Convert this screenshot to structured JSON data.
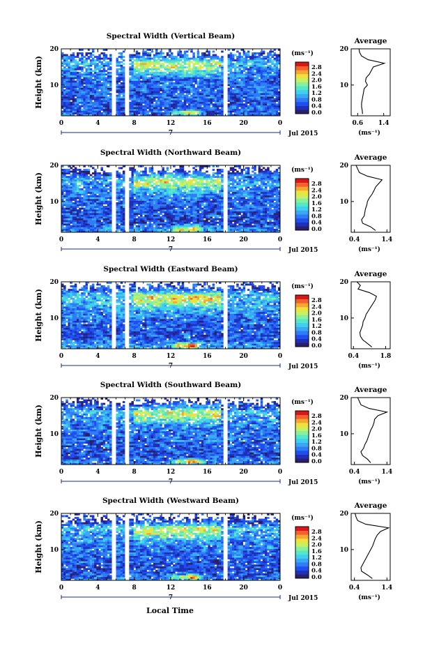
{
  "figure": {
    "xlabel": "Local Time",
    "month_label": "Jul 2015",
    "day_marker": "7",
    "ylabel": "Height (km)",
    "unit": "(ms⁻¹)",
    "avg_title": "Average",
    "avg_unit": "(ms⁻¹)"
  },
  "colorbar": {
    "ticks": [
      "2.8",
      "2.4",
      "2.0",
      "1.6",
      "1.2",
      "0.8",
      "0.4",
      "0.0"
    ],
    "colors": [
      "#2b1f6b",
      "#1f2fb8",
      "#1f4ff0",
      "#2f7df5",
      "#3aa8f5",
      "#3fd0f0",
      "#55e8c8",
      "#8af09a",
      "#c8f060",
      "#f0e040",
      "#f5a830",
      "#f56030",
      "#d81818"
    ]
  },
  "chart_data": [
    {
      "type": "heatmap",
      "title": "Spectral Width (Vertical Beam)",
      "x_ticks": [
        "0",
        "4",
        "8",
        "12",
        "16",
        "20",
        "0"
      ],
      "x_range": [
        0,
        24
      ],
      "y_ticks": [
        "20",
        "10"
      ],
      "y_range": [
        1.5,
        20
      ],
      "z_range": [
        0.0,
        3.0
      ],
      "data_gaps_hours": [
        [
          5.6,
          6.0
        ],
        [
          7.0,
          7.5
        ],
        [
          17.8,
          18.2
        ]
      ],
      "avg_profile": {
        "x_ticks": [
          "0.6",
          "1.4"
        ],
        "x_range": [
          0.4,
          1.6
        ],
        "heights_km": [
          2,
          3,
          4,
          5,
          6,
          7,
          8,
          9,
          10,
          11,
          12,
          13,
          14,
          15,
          16,
          17,
          18,
          19,
          20
        ],
        "values": [
          0.75,
          0.74,
          0.72,
          0.72,
          0.74,
          0.76,
          0.78,
          0.8,
          0.9,
          0.84,
          0.86,
          0.96,
          1.02,
          1.08,
          1.42,
          0.92,
          0.72,
          0.66,
          0.64
        ]
      }
    },
    {
      "type": "heatmap",
      "title": "Spectral Width (Northward Beam)",
      "x_ticks": [
        "0",
        "4",
        "8",
        "12",
        "16",
        "20",
        "0"
      ],
      "x_range": [
        0,
        24
      ],
      "y_ticks": [
        "20",
        "10"
      ],
      "y_range": [
        1.5,
        20
      ],
      "z_range": [
        0.0,
        3.0
      ],
      "data_gaps_hours": [
        [
          5.6,
          6.0
        ],
        [
          7.0,
          7.5
        ],
        [
          17.8,
          18.2
        ]
      ],
      "avg_profile": {
        "x_ticks": [
          "0.4",
          "1.4"
        ],
        "x_range": [
          0.3,
          1.5
        ],
        "heights_km": [
          2,
          3,
          4,
          5,
          6,
          7,
          8,
          9,
          10,
          11,
          12,
          13,
          14,
          15,
          16,
          17,
          18,
          19,
          20
        ],
        "values": [
          1.05,
          0.9,
          0.65,
          0.62,
          0.7,
          0.72,
          0.74,
          0.78,
          0.8,
          0.86,
          0.94,
          1.0,
          1.05,
          1.15,
          1.25,
          0.8,
          0.55,
          0.5,
          0.45
        ]
      }
    },
    {
      "type": "heatmap",
      "title": "Spectral Width (Eastward Beam)",
      "x_ticks": [
        "0",
        "4",
        "8",
        "12",
        "16",
        "20",
        "0"
      ],
      "x_range": [
        0,
        24
      ],
      "y_ticks": [
        "20",
        "10"
      ],
      "y_range": [
        1.5,
        20
      ],
      "z_range": [
        0.0,
        3.0
      ],
      "data_gaps_hours": [
        [
          5.6,
          6.0
        ],
        [
          7.0,
          7.5
        ],
        [
          17.8,
          18.2
        ]
      ],
      "avg_profile": {
        "x_ticks": [
          "0.4",
          "1.8"
        ],
        "x_range": [
          0.3,
          2.0
        ],
        "heights_km": [
          2,
          3,
          4,
          5,
          6,
          7,
          8,
          9,
          10,
          11,
          12,
          13,
          14,
          15,
          16,
          17,
          18,
          19,
          20
        ],
        "values": [
          1.2,
          1.0,
          0.8,
          0.7,
          0.68,
          0.74,
          0.8,
          0.82,
          0.9,
          0.95,
          1.05,
          1.15,
          1.25,
          1.35,
          1.4,
          1.1,
          0.6,
          0.7,
          0.55
        ]
      }
    },
    {
      "type": "heatmap",
      "title": "Spectral Width (Southward Beam)",
      "x_ticks": [
        "0",
        "4",
        "8",
        "12",
        "16",
        "20",
        "0"
      ],
      "x_range": [
        0,
        24
      ],
      "y_ticks": [
        "20",
        "10"
      ],
      "y_range": [
        1.5,
        20
      ],
      "z_range": [
        0.0,
        3.0
      ],
      "data_gaps_hours": [
        [
          5.6,
          6.0
        ],
        [
          7.0,
          7.5
        ],
        [
          17.8,
          18.2
        ]
      ],
      "avg_profile": {
        "x_ticks": [
          "0.4",
          "1.4"
        ],
        "x_range": [
          0.3,
          1.5
        ],
        "heights_km": [
          2,
          3,
          4,
          5,
          6,
          7,
          8,
          9,
          10,
          11,
          12,
          13,
          14,
          15,
          16,
          17,
          18,
          19,
          20
        ],
        "values": [
          0.9,
          0.8,
          0.65,
          0.6,
          0.68,
          0.72,
          0.78,
          0.82,
          0.86,
          0.9,
          0.96,
          1.0,
          1.02,
          1.12,
          1.4,
          0.85,
          0.6,
          0.55,
          0.5
        ]
      }
    },
    {
      "type": "heatmap",
      "title": "Spectral Width (Westward Beam)",
      "x_ticks": [
        "0",
        "4",
        "8",
        "12",
        "16",
        "20",
        "0"
      ],
      "x_range": [
        0,
        24
      ],
      "y_ticks": [
        "20",
        "10"
      ],
      "y_range": [
        1.5,
        20
      ],
      "z_range": [
        0.0,
        3.0
      ],
      "data_gaps_hours": [
        [
          5.6,
          6.0
        ],
        [
          7.0,
          7.5
        ],
        [
          17.8,
          18.2
        ]
      ],
      "avg_profile": {
        "x_ticks": [
          "0.4",
          "1.4"
        ],
        "x_range": [
          0.3,
          1.5
        ],
        "heights_km": [
          2,
          3,
          4,
          5,
          6,
          7,
          8,
          9,
          10,
          11,
          12,
          13,
          14,
          15,
          16,
          17,
          18,
          19,
          20
        ],
        "values": [
          0.95,
          0.8,
          0.62,
          0.6,
          0.66,
          0.72,
          0.78,
          0.84,
          0.9,
          0.96,
          1.0,
          1.04,
          1.1,
          1.2,
          1.45,
          0.75,
          0.5,
          0.45,
          0.42
        ]
      }
    }
  ]
}
